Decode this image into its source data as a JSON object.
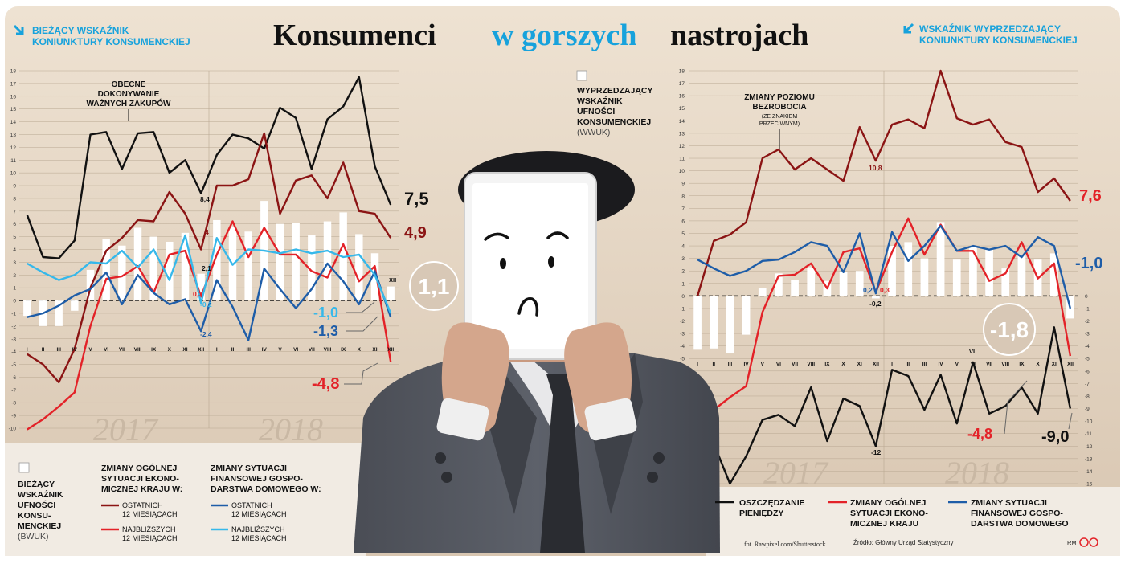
{
  "title": {
    "part1": "Konsumenci",
    "part2": "w gorszych",
    "part3": "nastrojach"
  },
  "header_left": {
    "line1": "BIEŻĄCY WSKAŹNIK",
    "line2": "KONIUNKTURY KONSUMENCKIEJ"
  },
  "header_right": {
    "line1": "WSKAŹNIK WYPRZEDZAJĄCY",
    "line2": "KONIUNKTURY KONSUMENCKIEJ"
  },
  "colors": {
    "black": "#111111",
    "dark_red": "#8b1414",
    "red": "#e32228",
    "blue": "#1e5da8",
    "light_blue": "#36b8ea",
    "bar": "#ffffff",
    "bg": "#e9dccb",
    "title_blue": "#17a2dc"
  },
  "left_chart": {
    "annotation": {
      "line1": "OBECNE",
      "line2": "DOKONYWANIE",
      "line3": "WAŻNYCH ZAKUPÓW"
    },
    "end_labels": {
      "black": "7,5",
      "dark_red": "4,9",
      "circle": "1,1",
      "light_blue": "-1,0",
      "blue": "-1,3",
      "red": "-4,8"
    },
    "point_labels": {
      "black_dec": "8,4",
      "dark_red_dec": "4",
      "bars_dec": "2,1",
      "red_dec": "0,3",
      "light_blue_dec": "-0,2",
      "blue_dec": "-2,4",
      "bars_last": "XII"
    },
    "year_labels": [
      "2017",
      "2018"
    ]
  },
  "right_chart": {
    "legend_top": {
      "line1": "WYPRZEDZAJĄCY",
      "line2": "WSKAŹNIK",
      "line3": "UFNOŚCI",
      "line4": "KONSUMENCKIEJ",
      "line5": "(WWUK)"
    },
    "annotation": {
      "line1": "ZMIANY POZIOMU",
      "line2": "BEZROBOCIA",
      "line3": "(ZE ZNAKIEM",
      "line4": "PRZECIWNYM)"
    },
    "end_labels": {
      "dark_red": "7,6",
      "blue": "-1,0",
      "circle": "-1,8",
      "red": "-4,8",
      "black": "-9,0"
    },
    "point_labels": {
      "dark_red_dec": "10,8",
      "blue_dec": "0,2",
      "red_dec": "0,3",
      "bars_dec": "-0,2",
      "black_dec": "-12",
      "black_jun": "VI"
    },
    "year_labels": [
      "2017",
      "2018"
    ]
  },
  "legend_left": {
    "bwuk": {
      "line1": "BIEŻĄCY",
      "line2": "WSKAŹNIK",
      "line3": "UFNOŚCI",
      "line4": "KONSU-",
      "line5": "MENCKIEJ",
      "line6": "(BWUK)"
    },
    "group1": {
      "title1": "ZMIANY OGÓLNEJ",
      "title2": "SYTUACJI EKONO-",
      "title3": "MICZNEJ KRAJU W:",
      "item1a": "OSTATNICH",
      "item1b": "12 MIESIĄCACH",
      "item2a": "NAJBLIŻSZYCH",
      "item2b": "12 MIESIĄCACH"
    },
    "group2": {
      "title1": "ZMIANY SYTUACJI",
      "title2": "FINANSOWEJ GOSPO-",
      "title3": "DARSTWA DOMOWEGO W:",
      "item1a": "OSTATNICH",
      "item1b": "12 MIESIĄCACH",
      "item2a": "NAJBLIŻSZYCH",
      "item2b": "12 MIESIĄCACH"
    }
  },
  "legend_right": {
    "item1": {
      "line1": "OSZCZĘDZANIE",
      "line2": "PIENIĘDZY"
    },
    "item2": {
      "line1": "ZMIANY OGÓLNEJ",
      "line2": "SYTUACJI EKONO-",
      "line3": "MICZNEJ KRAJU"
    },
    "item3": {
      "line1": "ZMIANY SYTUACJI",
      "line2": "FINANSOWEJ GOSPO-",
      "line3": "DARSTWA DOMOWEGO"
    }
  },
  "credits": {
    "photo": "fot. Rawpixel.com/Shutterstock",
    "source": "Źródło: Główny Urząd Statystyczny",
    "author": "RM"
  },
  "chart_data": [
    {
      "type": "line",
      "title": "BIEŻĄCY WSKAŹNIK KONIUNKTURY KONSUMENCKIEJ",
      "x": [
        "I",
        "II",
        "III",
        "IV",
        "V",
        "VI",
        "VII",
        "VIII",
        "IX",
        "X",
        "XI",
        "XII",
        "I",
        "II",
        "III",
        "IV",
        "V",
        "VI",
        "VII",
        "VIII",
        "IX",
        "X",
        "XI",
        "XII"
      ],
      "x_groups": [
        "2017",
        "2018"
      ],
      "ylim": [
        -10,
        18
      ],
      "yticks": [
        -10,
        -9,
        -8,
        -7,
        -6,
        -5,
        -4,
        -3,
        -2,
        -1,
        0,
        1,
        2,
        3,
        4,
        5,
        6,
        7,
        8,
        9,
        10,
        11,
        12,
        13,
        14,
        15,
        16,
        17,
        18
      ],
      "bars": {
        "name": "BIEŻĄCY WSKAŹNIK UFNOŚCI KONSUMENCKIEJ (BWUK)",
        "values": [
          -1.2,
          -2.0,
          -2.0,
          -0.8,
          2.4,
          4.8,
          4.3,
          5.7,
          5.0,
          4.6,
          5.3,
          2.1,
          6.3,
          5.8,
          5.4,
          7.8,
          6.0,
          6.1,
          5.1,
          6.2,
          6.9,
          5.2,
          3.7,
          1.1
        ]
      },
      "series": [
        {
          "name": "OBECNE DOKONYWANIE WAŻNYCH ZAKUPÓW",
          "color": "#111111",
          "values": [
            6.7,
            3.4,
            3.3,
            4.7,
            13.0,
            13.2,
            10.3,
            13.1,
            13.2,
            10.0,
            11.0,
            8.4,
            11.4,
            13.0,
            12.7,
            11.9,
            15.1,
            14.3,
            10.3,
            14.2,
            15.2,
            17.5,
            10.5,
            7.5
          ]
        },
        {
          "name": "ZMIANY OGÓLNEJ SYTUACJI EKONOMICZNEJ KRAJU W OSTATNICH 12 MIESIĄCACH",
          "color": "#8b1414",
          "values": [
            -4.2,
            -5.0,
            -6.4,
            -3.8,
            1.0,
            3.9,
            4.9,
            6.3,
            6.2,
            8.5,
            6.8,
            4.0,
            9.0,
            9.0,
            9.5,
            13.1,
            6.8,
            9.4,
            9.8,
            8.0,
            10.8,
            7.0,
            6.8,
            4.9
          ]
        },
        {
          "name": "ZMIANY OGÓLNEJ SYTUACJI EKONOMICZNEJ KRAJU W NAJBLIŻSZYCH 12 MIESIĄCACH",
          "color": "#e32228",
          "values": [
            -10.1,
            -9.3,
            -8.3,
            -7.2,
            -2.0,
            1.7,
            1.9,
            2.7,
            0.6,
            3.6,
            3.9,
            0.3,
            3.6,
            6.2,
            3.4,
            5.7,
            3.6,
            3.6,
            2.3,
            1.8,
            4.4,
            1.5,
            2.7,
            -4.8
          ]
        },
        {
          "name": "ZMIANY SYTUACJI FINANSOWEJ GOSPODARSTWA DOMOWEGO W OSTATNICH 12 MIESIĄCACH",
          "color": "#1e5da8",
          "values": [
            -1.3,
            -1.0,
            -0.4,
            0.4,
            0.9,
            2.2,
            -0.3,
            2.0,
            0.6,
            -0.3,
            0.1,
            -2.4,
            1.6,
            -0.5,
            -3.1,
            2.5,
            0.9,
            -0.6,
            0.9,
            2.9,
            1.5,
            -0.3,
            2.3,
            -1.3
          ]
        },
        {
          "name": "ZMIANY SYTUACJI FINANSOWEJ GOSPODARSTWA DOMOWEGO W NAJBLIŻSZYCH 12 MIESIĄCACH",
          "color": "#36b8ea",
          "values": [
            2.9,
            2.2,
            1.6,
            2.0,
            3.0,
            2.9,
            3.9,
            2.6,
            4.0,
            1.6,
            5.1,
            -0.2,
            4.9,
            2.8,
            4.0,
            3.9,
            3.7,
            4.0,
            3.7,
            3.9,
            3.4,
            3.6,
            2.0,
            -1.0
          ]
        }
      ]
    },
    {
      "type": "line",
      "title": "WSKAŹNIK WYPRZEDZAJĄCY KONIUNKTURY KONSUMENCKIEJ",
      "x": [
        "I",
        "II",
        "III",
        "IV",
        "V",
        "VI",
        "VII",
        "VIII",
        "IX",
        "X",
        "XI",
        "XII",
        "I",
        "II",
        "III",
        "IV",
        "V",
        "VI",
        "VII",
        "VIII",
        "IX",
        "X",
        "XI",
        "XII"
      ],
      "x_groups": [
        "2017",
        "2018"
      ],
      "ylim": [
        -15,
        18
      ],
      "yticks": [
        -15,
        -14,
        -13,
        -12,
        -11,
        -10,
        -9,
        -8,
        -7,
        -6,
        -5,
        -4,
        -3,
        -2,
        -1,
        0,
        1,
        2,
        3,
        4,
        5,
        6,
        7,
        8,
        9,
        10,
        11,
        12,
        13,
        14,
        15,
        16,
        17,
        18
      ],
      "bars": {
        "name": "WYPRZEDZAJĄCY WSKAŹNIK UFNOŚCI KONSUMENCKIEJ (WWUK)",
        "values": [
          -4.3,
          -4.2,
          -4.6,
          -3.1,
          0.6,
          1.8,
          1.3,
          2.3,
          1.2,
          1.9,
          2.0,
          -0.2,
          4.0,
          4.3,
          3.0,
          5.9,
          2.9,
          3.9,
          3.8,
          2.2,
          3.3,
          2.9,
          3.4,
          -1.8
        ]
      },
      "series": [
        {
          "name": "ZMIANY POZIOMU BEZROBOCIA (ZE ZNAKIEM PRZECIWNYM)",
          "color": "#8b1414",
          "values": [
            0.0,
            4.4,
            4.9,
            5.9,
            11.0,
            11.7,
            10.1,
            11.0,
            10.1,
            9.2,
            13.5,
            10.8,
            13.7,
            14.1,
            13.4,
            18.0,
            14.2,
            13.7,
            14.1,
            12.3,
            11.9,
            8.3,
            9.4,
            7.6
          ]
        },
        {
          "name": "OSZCZĘDZANIE PIENIĘDZY",
          "color": "#111111",
          "values": [
            -10.0,
            -11.8,
            -15.0,
            -12.8,
            -9.9,
            -9.5,
            -10.4,
            -7.3,
            -11.6,
            -8.2,
            -8.8,
            -12.0,
            -5.9,
            -6.4,
            -9.1,
            -6.3,
            -10.2,
            -5.3,
            -9.4,
            -8.8,
            -7.3,
            -9.4,
            -2.5,
            -9.0
          ]
        },
        {
          "name": "ZMIANY OGÓLNEJ SYTUACJI EKONOMICZNEJ KRAJU",
          "color": "#e32228",
          "values": [
            -10.0,
            -9.1,
            -8.1,
            -7.2,
            -1.3,
            1.6,
            1.7,
            2.6,
            0.6,
            3.5,
            3.8,
            0.3,
            3.5,
            6.2,
            3.3,
            5.7,
            3.6,
            3.6,
            1.2,
            1.8,
            4.3,
            1.4,
            2.6,
            -4.8
          ]
        },
        {
          "name": "ZMIANY SYTUACJI FINANSOWEJ GOSPODARSTWA DOMOWEGO",
          "color": "#1e5da8",
          "values": [
            2.9,
            2.2,
            1.6,
            2.0,
            2.8,
            2.9,
            3.5,
            4.3,
            4.0,
            1.9,
            5.0,
            0.2,
            5.1,
            2.8,
            4.0,
            5.6,
            3.6,
            4.0,
            3.7,
            4.0,
            3.1,
            4.7,
            4.0,
            -1.0
          ]
        }
      ]
    }
  ]
}
